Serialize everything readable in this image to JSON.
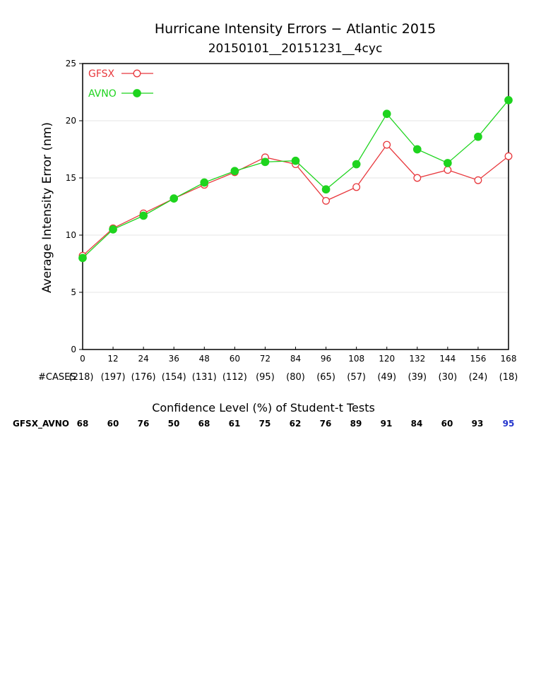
{
  "chart_data": {
    "type": "line",
    "title": "Hurricane Intensity Errors − Atlantic 2015",
    "subtitle": "20150101__20151231__4cyc",
    "xlabel": "",
    "ylabel": "Average Intensity Error (nm)",
    "x": [
      0,
      12,
      24,
      36,
      48,
      60,
      72,
      84,
      96,
      108,
      120,
      132,
      144,
      156,
      168
    ],
    "xlim": [
      0,
      168
    ],
    "ylim": [
      0,
      25
    ],
    "yticks": [
      0,
      5,
      10,
      15,
      20,
      25
    ],
    "grid": true,
    "legend_position": "top-left",
    "series": [
      {
        "name": "GFSX",
        "color": "#e8383d",
        "marker": "open-circle",
        "values": [
          8.2,
          10.6,
          11.9,
          13.2,
          14.4,
          15.5,
          16.8,
          16.2,
          13.0,
          14.2,
          17.9,
          15.0,
          15.7,
          14.8,
          16.9
        ]
      },
      {
        "name": "AVNO",
        "color": "#1ed41e",
        "marker": "filled-circle",
        "values": [
          8.0,
          10.5,
          11.7,
          13.2,
          14.6,
          15.6,
          16.4,
          16.5,
          14.0,
          16.2,
          20.6,
          17.5,
          16.3,
          18.6,
          21.8
        ]
      }
    ],
    "cases_label": "#CASES",
    "cases": [
      "(218)",
      "(197)",
      "(176)",
      "(154)",
      "(131)",
      "(112)",
      "(95)",
      "(80)",
      "(65)",
      "(57)",
      "(49)",
      "(39)",
      "(30)",
      "(24)",
      "(18)"
    ]
  },
  "significance": {
    "heading": "Confidence Level (%) of Student-t Tests",
    "row_label": "GFSX_AVNO",
    "values": [
      "68",
      "60",
      "76",
      "50",
      "68",
      "61",
      "75",
      "62",
      "76",
      "89",
      "91",
      "84",
      "60",
      "93",
      "95"
    ],
    "highlight_color": "#2233cc",
    "highlight_threshold": 95
  }
}
